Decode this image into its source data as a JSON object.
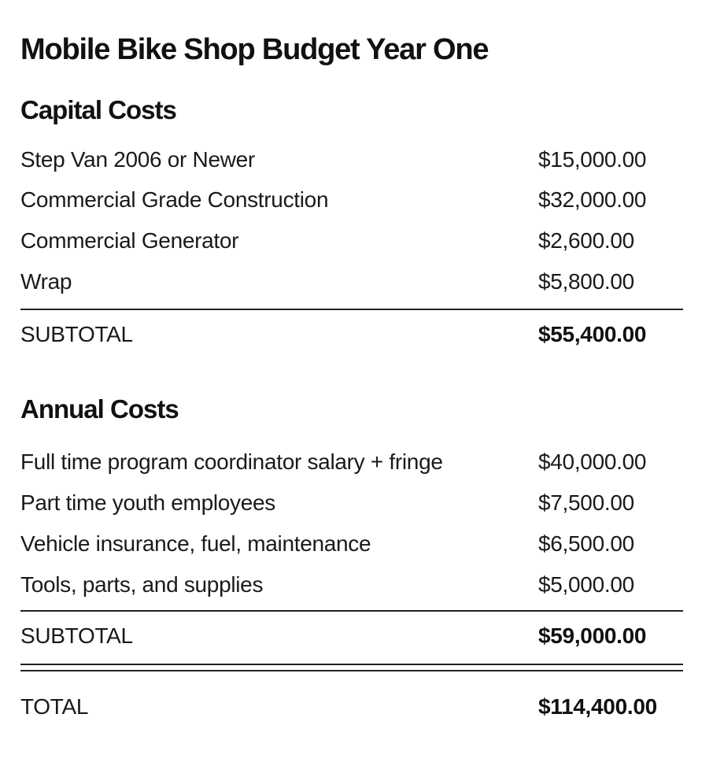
{
  "title": "Mobile Bike Shop Budget Year One",
  "capital": {
    "heading": "Capital Costs",
    "items": [
      {
        "label": "Step Van 2006 or Newer",
        "amount": "$15,000.00"
      },
      {
        "label": "Commercial Grade Construction",
        "amount": "$32,000.00"
      },
      {
        "label": "Commercial Generator",
        "amount": "$2,600.00"
      },
      {
        "label": "Wrap",
        "amount": "$5,800.00"
      }
    ],
    "subtotal": {
      "label": "SUBTOTAL",
      "amount": "$55,400.00"
    }
  },
  "annual": {
    "heading": "Annual Costs",
    "items": [
      {
        "label": "Full time program coordinator salary + fringe",
        "amount": "$40,000.00"
      },
      {
        "label": "Part time youth employees",
        "amount": "$7,500.00"
      },
      {
        "label": "Vehicle insurance, fuel, maintenance",
        "amount": "$6,500.00"
      },
      {
        "label": "Tools, parts, and supplies",
        "amount": "$5,000.00"
      }
    ],
    "subtotal": {
      "label": "SUBTOTAL",
      "amount": "$59,000.00"
    }
  },
  "total": {
    "label": "TOTAL",
    "amount": "$114,400.00"
  }
}
